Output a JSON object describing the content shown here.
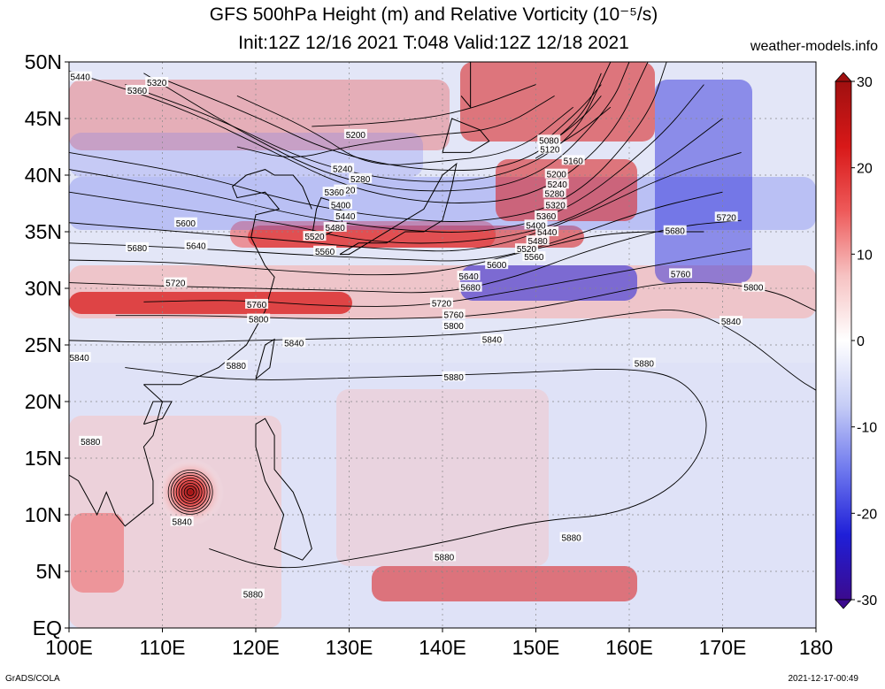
{
  "header": {
    "title_line1": "GFS 500hPa Height (m) and Relative Vorticity (10⁻⁵/s)",
    "title_line2": "Init:12Z 12/16 2021  T:048  Valid:12Z 12/18 2021",
    "site": "weather-models.info"
  },
  "axes": {
    "lon_labels": [
      "100E",
      "110E",
      "120E",
      "130E",
      "140E",
      "150E",
      "160E",
      "170E",
      "180"
    ],
    "lat_labels": [
      "50N",
      "45N",
      "40N",
      "35N",
      "30N",
      "25N",
      "20N",
      "15N",
      "10N",
      "5N",
      "EQ"
    ],
    "lon_range": [
      100,
      180
    ],
    "lat_range": [
      0,
      50
    ]
  },
  "colorbar": {
    "labels": [
      "30",
      "20",
      "10",
      "0",
      "-10",
      "-20",
      "-30"
    ],
    "range": [
      -30,
      30
    ],
    "colors": [
      "#3b0a8e",
      "#1f1fd8",
      "#6e78ee",
      "#c6cdf6",
      "#ffffff",
      "#f6c2c2",
      "#ee5a5a",
      "#d81818",
      "#a01010"
    ]
  },
  "contours": {
    "color": "#000000",
    "lines": [
      {
        "label": "5880",
        "segments": [
          [
            [
              106,
              23
            ],
            [
              118,
              21.8
            ],
            [
              130,
              22.1
            ],
            [
              140,
              22.3
            ],
            [
              150,
              22.6
            ],
            [
              160,
              23
            ],
            [
              166,
              22
            ],
            [
              169,
              18
            ],
            [
              166,
              13
            ],
            [
              159,
              10
            ],
            [
              150,
              9.5
            ],
            [
              140,
              7.5
            ],
            [
              130,
              6
            ],
            [
              122,
              5
            ],
            [
              115,
              7
            ]
          ]
        ]
      },
      {
        "label": "5840",
        "segments": [
          [
            [
              100,
              25.4
            ],
            [
              110,
              25.2
            ],
            [
              120,
              25.4
            ],
            [
              130,
              25.6
            ],
            [
              140,
              25.8
            ],
            [
              150,
              26.5
            ],
            [
              160,
              27.8
            ],
            [
              166,
              28.3
            ],
            [
              172,
              26
            ],
            [
              178,
              22
            ],
            [
              180,
              21
            ]
          ]
        ]
      },
      {
        "label": "5800",
        "segments": [
          [
            [
              105,
              27.6
            ],
            [
              115,
              27.6
            ],
            [
              125,
              27.3
            ],
            [
              135,
              27.3
            ],
            [
              145,
              27.6
            ],
            [
              155,
              29
            ],
            [
              165,
              30.8
            ],
            [
              175,
              30
            ],
            [
              180,
              28
            ]
          ]
        ]
      },
      {
        "label": "5760",
        "segments": [
          [
            [
              108,
              28.8
            ],
            [
              118,
              29
            ],
            [
              128,
              28.4
            ],
            [
              138,
              28.4
            ],
            [
              148,
              29.8
            ],
            [
              158,
              31.3
            ],
            [
              166,
              32.5
            ],
            [
              173,
              33.5
            ]
          ]
        ]
      },
      {
        "label": "5720",
        "segments": [
          [
            [
              100,
              30.5
            ],
            [
              110,
              30.2
            ],
            [
              120,
              30
            ],
            [
              130,
              29.8
            ],
            [
              140,
              29.5
            ],
            [
              148,
              31
            ],
            [
              156,
              33.5
            ],
            [
              165,
              35.5
            ],
            [
              172,
              36
            ]
          ]
        ]
      },
      {
        "label": "5680",
        "segments": [
          [
            [
              100,
              32.5
            ],
            [
              112,
              32.3
            ],
            [
              122,
              31.6
            ],
            [
              132,
              31.1
            ],
            [
              140,
              31.4
            ],
            [
              150,
              33.5
            ],
            [
              158,
              35
            ],
            [
              168,
              35
            ]
          ]
        ]
      },
      {
        "label": "5640",
        "segments": [
          [
            [
              100,
              34
            ],
            [
              112,
              33.6
            ],
            [
              124,
              33
            ],
            [
              134,
              32.6
            ],
            [
              144,
              32.3
            ],
            [
              152,
              34
            ],
            [
              162,
              37
            ],
            [
              170,
              38.5
            ]
          ]
        ]
      },
      {
        "label": "5600",
        "segments": [
          [
            [
              100,
              35.8
            ],
            [
              112,
              35
            ],
            [
              124,
              34.2
            ],
            [
              134,
              33.4
            ],
            [
              144,
              33.2
            ],
            [
              154,
              36
            ],
            [
              164,
              40
            ],
            [
              172,
              42
            ]
          ]
        ]
      },
      {
        "label": "5560",
        "segments": [
          [
            [
              100,
              38.5
            ],
            [
              112,
              37
            ],
            [
              124,
              35.6
            ],
            [
              130,
              34.3
            ],
            [
              140,
              33.8
            ],
            [
              152,
              35.2
            ],
            [
              162,
              40
            ],
            [
              170,
              45
            ]
          ]
        ]
      },
      {
        "label": "5520",
        "segments": [
          [
            [
              100,
              40.5
            ],
            [
              114,
              38.5
            ],
            [
              124,
              36.5
            ],
            [
              134,
              35.2
            ],
            [
              144,
              34.8
            ],
            [
              153,
              36.5
            ],
            [
              163,
              43
            ],
            [
              168,
              48
            ]
          ]
        ]
      },
      {
        "label": "5480",
        "segments": [
          [
            [
              100,
              42
            ],
            [
              114,
              40
            ],
            [
              124,
              37.6
            ],
            [
              134,
              36.2
            ],
            [
              144,
              35.7
            ],
            [
              154,
              37.6
            ],
            [
              162,
              45
            ],
            [
              164,
              50
            ]
          ]
        ]
      },
      {
        "label": "5440",
        "segments": [
          [
            [
              100,
              49.2
            ],
            [
              112,
              46
            ],
            [
              122,
              42
            ],
            [
              130,
              38.8
            ],
            [
              140,
              37.3
            ],
            [
              150,
              38
            ],
            [
              158,
              43
            ],
            [
              162,
              50
            ]
          ]
        ]
      },
      {
        "label": "5400",
        "segments": [
          [
            [
              108,
              49
            ],
            [
              118,
              44
            ],
            [
              128,
              39.8
            ],
            [
              138,
              38.3
            ],
            [
              150,
              39.3
            ],
            [
              158,
              46
            ],
            [
              160,
              50
            ]
          ]
        ]
      },
      {
        "label": "5360",
        "segments": [
          [
            [
              106,
              48
            ],
            [
              116,
              45
            ],
            [
              126,
              41
            ],
            [
              136,
              39.3
            ],
            [
              146,
              39.6
            ],
            [
              154,
              43
            ],
            [
              158,
              50
            ]
          ]
        ]
      },
      {
        "label": "5320",
        "segments": [
          [
            [
              110,
              48.5
            ],
            [
              120,
              45.2
            ],
            [
              128,
              42
            ],
            [
              138,
              40.3
            ],
            [
              148,
              40.6
            ],
            [
              155,
              45
            ],
            [
              157,
              49
            ]
          ]
        ]
      },
      {
        "label": "5280",
        "segments": [
          [
            [
              118,
              47
            ],
            [
              126,
              44
            ],
            [
              132,
              40.7
            ],
            [
              140,
              41.2
            ],
            [
              148,
              42
            ],
            [
              154,
              46
            ]
          ]
        ]
      },
      {
        "label": "5240",
        "segments": [
          [
            [
              118,
              42.5
            ],
            [
              124,
              41.3
            ],
            [
              130,
              42.6
            ],
            [
              138,
              43.5
            ],
            [
              146,
              44
            ],
            [
              152,
              47
            ]
          ]
        ]
      },
      {
        "label": "5200",
        "segments": [
          [
            [
              126,
              44.3
            ],
            [
              134,
              44.6
            ],
            [
              142,
              45.5
            ],
            [
              150,
              48
            ]
          ]
        ]
      },
      {
        "label": "5160",
        "segments": [
          [
            [
              150,
              41.5
            ],
            [
              155,
              44
            ],
            [
              158,
              46
            ]
          ]
        ]
      },
      {
        "label": "5120",
        "segments": [
          [
            [
              151,
              42.5
            ],
            [
              155,
              45
            ],
            [
              157,
              47
            ]
          ]
        ]
      },
      {
        "label": "5080",
        "segments": [
          [
            [
              151,
              43
            ],
            [
              155,
              46
            ],
            [
              157,
              48
            ]
          ]
        ]
      }
    ],
    "labels": [
      {
        "text": "5440",
        "lon": 101.2,
        "lat": 48.7
      },
      {
        "text": "5360",
        "lon": 107.3,
        "lat": 47.5
      },
      {
        "text": "5320",
        "lon": 109.4,
        "lat": 48.2
      },
      {
        "text": "5200",
        "lon": 130.7,
        "lat": 43.6
      },
      {
        "text": "5240",
        "lon": 129.3,
        "lat": 40.6
      },
      {
        "text": "5280",
        "lon": 131.2,
        "lat": 39.7
      },
      {
        "text": "5320",
        "lon": 129.6,
        "lat": 38.7
      },
      {
        "text": "5360",
        "lon": 128.4,
        "lat": 38.5
      },
      {
        "text": "5400",
        "lon": 129.1,
        "lat": 37.4
      },
      {
        "text": "5440",
        "lon": 129.6,
        "lat": 36.4
      },
      {
        "text": "5480",
        "lon": 128.5,
        "lat": 35.4
      },
      {
        "text": "5520",
        "lon": 126.3,
        "lat": 34.6
      },
      {
        "text": "5560",
        "lon": 127.4,
        "lat": 33.3
      },
      {
        "text": "5600",
        "lon": 112.5,
        "lat": 35.8
      },
      {
        "text": "5640",
        "lon": 113.6,
        "lat": 33.8
      },
      {
        "text": "5680",
        "lon": 107.3,
        "lat": 33.6
      },
      {
        "text": "5720",
        "lon": 111.4,
        "lat": 30.5
      },
      {
        "text": "5760",
        "lon": 120.1,
        "lat": 28.6
      },
      {
        "text": "5800",
        "lon": 120.3,
        "lat": 27.3
      },
      {
        "text": "5840",
        "lon": 124.1,
        "lat": 25.2
      },
      {
        "text": "5880",
        "lon": 117.9,
        "lat": 23.2
      },
      {
        "text": "5840",
        "lon": 101.1,
        "lat": 23.9
      },
      {
        "text": "5880",
        "lon": 102.3,
        "lat": 16.5
      },
      {
        "text": "5840",
        "lon": 112.1,
        "lat": 9.4
      },
      {
        "text": "5880",
        "lon": 119.7,
        "lat": 3.0
      },
      {
        "text": "5880",
        "lon": 140.2,
        "lat": 6.3
      },
      {
        "text": "5880",
        "lon": 153.8,
        "lat": 8.0
      },
      {
        "text": "5880",
        "lon": 141.2,
        "lat": 22.2
      },
      {
        "text": "5880",
        "lon": 161.6,
        "lat": 23.4
      },
      {
        "text": "5840",
        "lon": 145.3,
        "lat": 25.5
      },
      {
        "text": "5800",
        "lon": 141.2,
        "lat": 26.7
      },
      {
        "text": "5760",
        "lon": 141.2,
        "lat": 27.7
      },
      {
        "text": "5720",
        "lon": 139.9,
        "lat": 28.7
      },
      {
        "text": "5680",
        "lon": 143.0,
        "lat": 30.1
      },
      {
        "text": "5640",
        "lon": 142.8,
        "lat": 31.1
      },
      {
        "text": "5600",
        "lon": 145.8,
        "lat": 32.1
      },
      {
        "text": "5560",
        "lon": 149.8,
        "lat": 32.8
      },
      {
        "text": "5520",
        "lon": 149.0,
        "lat": 33.5
      },
      {
        "text": "5480",
        "lon": 150.2,
        "lat": 34.2
      },
      {
        "text": "5440",
        "lon": 151.2,
        "lat": 35.0
      },
      {
        "text": "5400",
        "lon": 150.0,
        "lat": 35.6
      },
      {
        "text": "5360",
        "lon": 151.1,
        "lat": 36.4
      },
      {
        "text": "5320",
        "lon": 152.1,
        "lat": 37.4
      },
      {
        "text": "5280",
        "lon": 152.0,
        "lat": 38.4
      },
      {
        "text": "5240",
        "lon": 152.3,
        "lat": 39.2
      },
      {
        "text": "5200",
        "lon": 152.2,
        "lat": 40.1
      },
      {
        "text": "5160",
        "lon": 154.0,
        "lat": 41.3
      },
      {
        "text": "5120",
        "lon": 151.5,
        "lat": 42.3
      },
      {
        "text": "5080",
        "lon": 151.4,
        "lat": 43.1
      },
      {
        "text": "5680",
        "lon": 164.9,
        "lat": 35.1
      },
      {
        "text": "5720",
        "lon": 170.4,
        "lat": 36.3
      },
      {
        "text": "5760",
        "lon": 165.5,
        "lat": 31.3
      },
      {
        "text": "5800",
        "lon": 173.3,
        "lat": 30.1
      },
      {
        "text": "5840",
        "lon": 170.9,
        "lat": 27.1
      }
    ]
  },
  "typhoon": {
    "lon": 113,
    "lat": 12
  }
}
